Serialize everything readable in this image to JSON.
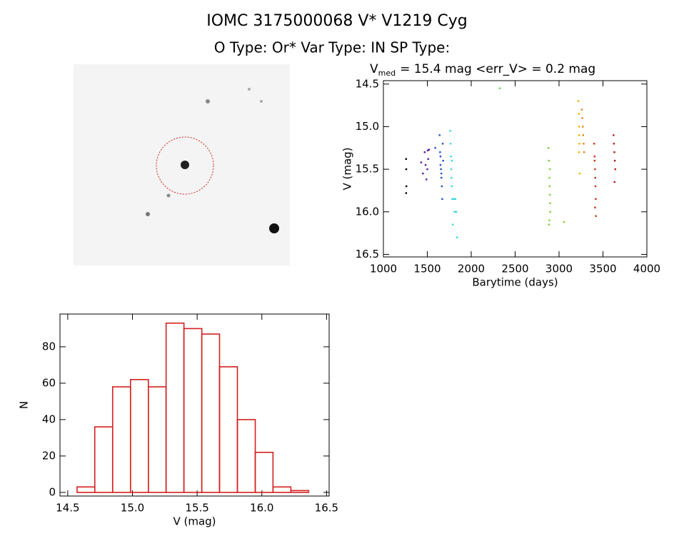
{
  "header": {
    "title": "IOMC 3175000068    V* V1219 Cyg",
    "subtitle": "O Type: Or*  Var Type: IN  SP Type:"
  },
  "chart_data": [
    {
      "type": "scatter",
      "title": {
        "symbol": "V",
        "subscript": "med",
        "text": "= 15.4 mag <err_V> = 0.2 mag"
      },
      "x_label": "Barytime (days)",
      "y_label": "V (mag)",
      "xlim": [
        1000,
        4000
      ],
      "ylim": [
        16.53,
        14.46
      ],
      "xticks": [
        1000,
        1500,
        2000,
        2500,
        3000,
        3500,
        4000
      ],
      "yticks": [
        14.5,
        {
          "value": 15,
          "label": "15.0"
        },
        15.5,
        {
          "value": 16,
          "label": "16.0"
        },
        16.5
      ],
      "series": [
        {
          "color": "#000000",
          "x": [
            1258,
            1260,
            1262,
            1259
          ],
          "y": [
            15.38,
            15.5,
            15.7,
            15.78
          ]
        },
        {
          "color": "#5a1a9a",
          "x": [
            1430,
            1450,
            1470,
            1480,
            1490,
            1500,
            1505,
            1510,
            1520
          ],
          "y": [
            15.42,
            15.55,
            15.3,
            15.45,
            15.62,
            15.5,
            15.28,
            15.38,
            15.27
          ]
        },
        {
          "color": "#2050c8",
          "x": [
            1590,
            1640,
            1645,
            1650,
            1655,
            1660,
            1665,
            1670,
            1675,
            1680,
            1660,
            1650
          ],
          "y": [
            15.25,
            15.1,
            15.3,
            15.45,
            15.5,
            15.6,
            15.7,
            15.85,
            15.2,
            15.4,
            15.55,
            15.35
          ]
        },
        {
          "color": "#30d8d8",
          "x": [
            1760,
            1765,
            1770,
            1772,
            1775,
            1778,
            1780,
            1785,
            1790,
            1800,
            1810,
            1820,
            1830,
            1840
          ],
          "y": [
            15.05,
            15.2,
            15.35,
            15.5,
            15.6,
            15.7,
            15.4,
            15.85,
            16.15,
            15.85,
            16.0,
            15.85,
            16.0,
            16.3
          ]
        },
        {
          "color": "#60d050",
          "x": [
            2325
          ],
          "y": [
            14.55
          ]
        },
        {
          "color": "#7ad030",
          "x": [
            2880,
            2885,
            2890,
            2892,
            2895,
            2898,
            2900,
            2890,
            2885,
            2895,
            3057
          ],
          "y": [
            15.25,
            15.4,
            15.6,
            15.7,
            15.8,
            15.9,
            16.0,
            16.1,
            16.15,
            15.5,
            16.12
          ]
        },
        {
          "color": "#f0b000",
          "x": [
            3220,
            3225,
            3228,
            3230,
            3232,
            3235,
            3228
          ],
          "y": [
            14.7,
            14.85,
            15.0,
            15.1,
            15.2,
            15.55,
            15.3
          ]
        },
        {
          "color": "#e08020",
          "x": [
            3260,
            3265,
            3270,
            3275,
            3280,
            3285
          ],
          "y": [
            14.8,
            14.9,
            15.0,
            15.1,
            15.2,
            15.3
          ]
        },
        {
          "color": "#d03010",
          "x": [
            3400,
            3405,
            3410,
            3412,
            3415,
            3418,
            3420,
            3410,
            3405
          ],
          "y": [
            15.2,
            15.35,
            15.5,
            15.6,
            15.7,
            15.85,
            16.05,
            15.95,
            15.4
          ]
        },
        {
          "color": "#b01818",
          "x": [
            3620,
            3625,
            3630,
            3635,
            3640,
            3632
          ],
          "y": [
            15.1,
            15.2,
            15.3,
            15.4,
            15.5,
            15.65
          ]
        }
      ]
    },
    {
      "type": "histogram",
      "x_label": "V (mag)",
      "y_label": "N",
      "color": "#d42020",
      "xlim": [
        14.44,
        16.52
      ],
      "ylim": [
        -2,
        98
      ],
      "xticks": [
        14.5,
        {
          "value": 15,
          "label": "15.0"
        },
        15.5,
        {
          "value": 16,
          "label": "16.0"
        },
        16.5
      ],
      "yticks": [
        0,
        20,
        40,
        60,
        80
      ],
      "bins": [
        14.572,
        14.709,
        14.847,
        14.985,
        15.123,
        15.26,
        15.398,
        15.536,
        15.673,
        15.811,
        15.949,
        16.086,
        16.224,
        16.362
      ],
      "values": [
        3,
        36,
        58,
        62,
        58,
        93,
        90,
        87,
        69,
        40,
        22,
        3,
        1
      ]
    }
  ]
}
